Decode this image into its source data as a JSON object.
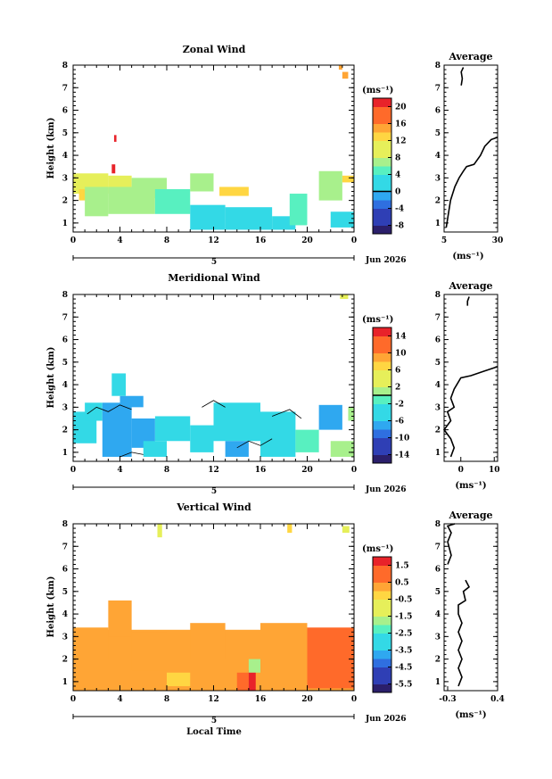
{
  "chart_data": [
    {
      "type": "heatmap",
      "title": "Zonal Wind",
      "ylabel": "Height (km)",
      "xlabel": "",
      "x_ticks": [
        "0",
        "4",
        "8",
        "12",
        "16",
        "20",
        "0"
      ],
      "y_ticks": [
        "1",
        "2",
        "3",
        "4",
        "5",
        "6",
        "7",
        "8"
      ],
      "xlim": [
        0,
        24
      ],
      "ylim": [
        0.6,
        8
      ],
      "day_label": "5",
      "date_label": "Jun 2026",
      "colorbar": {
        "unit_label": "(ms⁻¹)",
        "ticks": [
          "20",
          "16",
          "12",
          "8",
          "4",
          "0",
          "-4",
          "-8"
        ],
        "range": [
          -10,
          22
        ],
        "zero_line": 0
      },
      "regions": [
        {
          "t0": 0,
          "t1": 3,
          "h0": 2.3,
          "h1": 3.2,
          "v": 10
        },
        {
          "t0": 0.5,
          "t1": 2,
          "h0": 2.0,
          "h1": 2.5,
          "v": 13
        },
        {
          "t0": 1,
          "t1": 3,
          "h0": 1.3,
          "h1": 2.6,
          "v": 7
        },
        {
          "t0": 3,
          "t1": 5,
          "h0": 2.5,
          "h1": 3.1,
          "v": 9
        },
        {
          "t0": 3,
          "t1": 7,
          "h0": 1.4,
          "h1": 2.6,
          "v": 6
        },
        {
          "t0": 5,
          "t1": 8,
          "h0": 2.1,
          "h1": 3.0,
          "v": 8
        },
        {
          "t0": 7,
          "t1": 10,
          "h0": 1.4,
          "h1": 2.5,
          "v": 5
        },
        {
          "t0": 10,
          "t1": 12,
          "h0": 2.4,
          "h1": 3.2,
          "v": 8
        },
        {
          "t0": 10,
          "t1": 13,
          "h0": 0.7,
          "h1": 1.8,
          "v": 3
        },
        {
          "t0": 12.5,
          "t1": 15,
          "h0": 2.2,
          "h1": 2.6,
          "v": 12
        },
        {
          "t0": 13,
          "t1": 17,
          "h0": 0.7,
          "h1": 1.7,
          "v": 2
        },
        {
          "t0": 17,
          "t1": 19,
          "h0": 0.7,
          "h1": 1.3,
          "v": 1
        },
        {
          "t0": 18.5,
          "t1": 20,
          "h0": 0.9,
          "h1": 2.3,
          "v": 4
        },
        {
          "t0": 21,
          "t1": 23,
          "h0": 2.0,
          "h1": 3.3,
          "v": 6
        },
        {
          "t0": 22,
          "t1": 24,
          "h0": 0.8,
          "h1": 1.5,
          "v": 2
        },
        {
          "t0": 23,
          "t1": 24,
          "h0": 2.8,
          "h1": 3.1,
          "v": 12
        },
        {
          "t0": 3.3,
          "t1": 3.6,
          "h0": 3.2,
          "h1": 3.6,
          "v": 20
        },
        {
          "t0": 3.5,
          "t1": 3.7,
          "h0": 4.6,
          "h1": 4.9,
          "v": 21
        },
        {
          "t0": 23,
          "t1": 23.5,
          "h0": 7.4,
          "h1": 7.7,
          "v": 16
        },
        {
          "t0": 22.7,
          "t1": 23,
          "h0": 7.8,
          "h1": 8.0,
          "v": 14
        }
      ],
      "profile": {
        "title": "Average",
        "xlabel": "(ms⁻¹)",
        "x_ticks": [
          "5",
          "30"
        ],
        "xlim": [
          5,
          30
        ],
        "ylim": [
          0.6,
          8
        ],
        "y_ticks": [
          "1",
          "2",
          "3",
          "4",
          "5",
          "6",
          "7",
          "8"
        ],
        "segments": [
          [
            [
              6,
              0.8
            ],
            [
              7,
              1.4
            ],
            [
              8,
              2.0
            ],
            [
              10,
              2.6
            ],
            [
              12,
              3.0
            ],
            [
              14,
              3.3
            ],
            [
              15.5,
              3.5
            ],
            [
              19,
              3.6
            ],
            [
              22,
              4.0
            ],
            [
              24,
              4.4
            ],
            [
              27,
              4.7
            ],
            [
              30,
              4.8
            ]
          ],
          [
            [
              13,
              7.1
            ],
            [
              13.5,
              7.4
            ],
            [
              13,
              7.7
            ],
            [
              14,
              7.9
            ]
          ]
        ]
      }
    },
    {
      "type": "heatmap",
      "title": "Meridional Wind",
      "ylabel": "Height (km)",
      "xlabel": "",
      "x_ticks": [
        "0",
        "4",
        "8",
        "12",
        "16",
        "20",
        "0"
      ],
      "y_ticks": [
        "1",
        "2",
        "3",
        "4",
        "5",
        "6",
        "7",
        "8"
      ],
      "xlim": [
        0,
        24
      ],
      "ylim": [
        0.6,
        8
      ],
      "day_label": "5",
      "date_label": "Jun 2026",
      "colorbar": {
        "unit_label": "(ms⁻¹)",
        "ticks": [
          "14",
          "10",
          "6",
          "2",
          "-2",
          "-6",
          "-10",
          "-14"
        ],
        "range": [
          -16,
          16
        ],
        "zero_line": 0
      },
      "regions": [
        {
          "t0": 0,
          "t1": 2,
          "h0": 1.4,
          "h1": 2.8,
          "v": -5
        },
        {
          "t0": 1,
          "t1": 2.5,
          "h0": 2.4,
          "h1": 3.2,
          "v": -3
        },
        {
          "t0": 2.5,
          "t1": 5,
          "h0": 0.8,
          "h1": 3.2,
          "v": -6
        },
        {
          "t0": 4,
          "t1": 6,
          "h0": 3.0,
          "h1": 3.5,
          "v": -8
        },
        {
          "t0": 5,
          "t1": 7,
          "h0": 1.2,
          "h1": 2.5,
          "v": -8
        },
        {
          "t0": 6,
          "t1": 8,
          "h0": 0.8,
          "h1": 1.5,
          "v": -5
        },
        {
          "t0": 7,
          "t1": 10,
          "h0": 1.5,
          "h1": 2.6,
          "v": -4
        },
        {
          "t0": 10,
          "t1": 12,
          "h0": 1.0,
          "h1": 2.2,
          "v": -5
        },
        {
          "t0": 12,
          "t1": 16,
          "h0": 1.5,
          "h1": 3.2,
          "v": -3
        },
        {
          "t0": 13,
          "t1": 15,
          "h0": 0.8,
          "h1": 1.5,
          "v": -7
        },
        {
          "t0": 16,
          "t1": 19,
          "h0": 0.8,
          "h1": 2.8,
          "v": -3
        },
        {
          "t0": 19,
          "t1": 21,
          "h0": 1.0,
          "h1": 2.0,
          "v": -2
        },
        {
          "t0": 21,
          "t1": 23,
          "h0": 2.0,
          "h1": 3.1,
          "v": -6
        },
        {
          "t0": 22,
          "t1": 24,
          "h0": 0.8,
          "h1": 1.5,
          "v": 1
        },
        {
          "t0": 23.5,
          "t1": 24,
          "h0": 2.4,
          "h1": 3.0,
          "v": 2
        },
        {
          "t0": 3.3,
          "t1": 4.5,
          "h0": 3.5,
          "h1": 4.5,
          "v": -4
        },
        {
          "t0": 22.8,
          "t1": 23.5,
          "h0": 7.8,
          "h1": 8.0,
          "v": 5
        }
      ],
      "contours": [
        [
          [
            1.2,
            2.7
          ],
          [
            2,
            3.0
          ],
          [
            3,
            2.8
          ],
          [
            4,
            3.1
          ],
          [
            5,
            2.9
          ]
        ],
        [
          [
            14,
            1.2
          ],
          [
            15,
            1.5
          ],
          [
            16,
            1.3
          ],
          [
            17,
            1.6
          ]
        ],
        [
          [
            11,
            3.0
          ],
          [
            12,
            3.3
          ],
          [
            13,
            3.0
          ]
        ],
        [
          [
            17,
            2.6
          ],
          [
            18.5,
            2.9
          ],
          [
            19.5,
            2.5
          ]
        ],
        [
          [
            4,
            0.8
          ],
          [
            5,
            1.0
          ],
          [
            6,
            0.9
          ]
        ]
      ],
      "profile": {
        "title": "Average",
        "xlabel": "(ms⁻¹)",
        "x_ticks": [
          "0",
          "10"
        ],
        "xlim": [
          -5,
          11
        ],
        "ylim": [
          0.6,
          8
        ],
        "y_ticks": [
          "1",
          "2",
          "3",
          "4",
          "5",
          "6",
          "7",
          "8"
        ],
        "segments": [
          [
            [
              -3,
              0.8
            ],
            [
              -2,
              1.2
            ],
            [
              -3,
              1.6
            ],
            [
              -5,
              2.0
            ],
            [
              -3,
              2.4
            ],
            [
              -4,
              2.8
            ],
            [
              -2,
              3.0
            ],
            [
              -3,
              3.4
            ],
            [
              -2,
              3.8
            ],
            [
              0,
              4.3
            ],
            [
              3,
              4.4
            ],
            [
              7,
              4.6
            ],
            [
              11,
              4.8
            ]
          ],
          [
            [
              2,
              7.5
            ],
            [
              2,
              7.7
            ],
            [
              2.5,
              7.9
            ]
          ]
        ]
      }
    },
    {
      "type": "heatmap",
      "title": "Vertical Wind",
      "ylabel": "Height (km)",
      "xlabel": "Local Time",
      "x_ticks": [
        "0",
        "4",
        "8",
        "12",
        "16",
        "20",
        "0"
      ],
      "y_ticks": [
        "1",
        "2",
        "3",
        "4",
        "5",
        "6",
        "7",
        "8"
      ],
      "xlim": [
        0,
        24
      ],
      "ylim": [
        0.6,
        8
      ],
      "day_label": "5",
      "date_label": "Jun 2026",
      "colorbar": {
        "unit_label": "(ms⁻¹)",
        "ticks": [
          "1.5",
          "0.5",
          "-0.5",
          "-1.5",
          "-2.5",
          "-3.5",
          "-4.5",
          "-5.5"
        ],
        "range": [
          -6,
          2
        ],
        "zero_line": null
      },
      "regions": [
        {
          "t0": 0,
          "t1": 24,
          "h0": 0.6,
          "h1": 3.3,
          "v": 0.4
        },
        {
          "t0": 0,
          "t1": 3,
          "h0": 2.0,
          "h1": 3.4,
          "v": 0.1
        },
        {
          "t0": 3,
          "t1": 5,
          "h0": 3.0,
          "h1": 4.6,
          "v": 0.3
        },
        {
          "t0": 5,
          "t1": 8,
          "h0": 1.5,
          "h1": 3.2,
          "v": 0.6
        },
        {
          "t0": 8,
          "t1": 10,
          "h0": 0.8,
          "h1": 1.4,
          "v": -0.3
        },
        {
          "t0": 10,
          "t1": 13,
          "h0": 2.0,
          "h1": 3.6,
          "v": 0.2
        },
        {
          "t0": 14,
          "t1": 15,
          "h0": 0.6,
          "h1": 1.4,
          "v": 1.0
        },
        {
          "t0": 15,
          "t1": 15.6,
          "h0": 0.6,
          "h1": 1.5,
          "v": 1.9
        },
        {
          "t0": 15,
          "t1": 16,
          "h0": 1.4,
          "h1": 2.0,
          "v": -1.6
        },
        {
          "t0": 16,
          "t1": 20,
          "h0": 2.0,
          "h1": 3.6,
          "v": 0.3
        },
        {
          "t0": 20,
          "t1": 24,
          "h0": 0.7,
          "h1": 3.4,
          "v": 0.7
        },
        {
          "t0": 7.2,
          "t1": 7.6,
          "h0": 7.4,
          "h1": 8.0,
          "v": -0.8
        },
        {
          "t0": 18.3,
          "t1": 18.7,
          "h0": 7.6,
          "h1": 8.0,
          "v": -0.6
        },
        {
          "t0": 23,
          "t1": 23.6,
          "h0": 7.6,
          "h1": 7.9,
          "v": -0.9
        }
      ],
      "profile": {
        "title": "Average",
        "xlabel": "(ms⁻¹)",
        "x_ticks": [
          "-0.3",
          "0.4"
        ],
        "xlim": [
          -0.35,
          0.4
        ],
        "ylim": [
          0.6,
          8
        ],
        "y_ticks": [
          "1",
          "2",
          "3",
          "4",
          "5",
          "6",
          "7",
          "8"
        ],
        "segments": [
          [
            [
              -0.15,
              0.8
            ],
            [
              -0.1,
              1.2
            ],
            [
              -0.15,
              1.6
            ],
            [
              -0.1,
              2.0
            ],
            [
              -0.15,
              2.4
            ],
            [
              -0.1,
              2.8
            ],
            [
              -0.15,
              3.2
            ],
            [
              -0.1,
              3.6
            ],
            [
              -0.15,
              4.0
            ],
            [
              -0.15,
              4.4
            ],
            [
              -0.05,
              4.6
            ],
            [
              -0.08,
              5.0
            ],
            [
              0.0,
              5.2
            ],
            [
              -0.05,
              5.5
            ]
          ],
          [
            [
              -0.3,
              6.2
            ],
            [
              -0.25,
              6.6
            ],
            [
              -0.3,
              7.2
            ],
            [
              -0.25,
              7.6
            ],
            [
              -0.3,
              7.9
            ],
            [
              -0.2,
              8.0
            ]
          ]
        ]
      }
    }
  ]
}
